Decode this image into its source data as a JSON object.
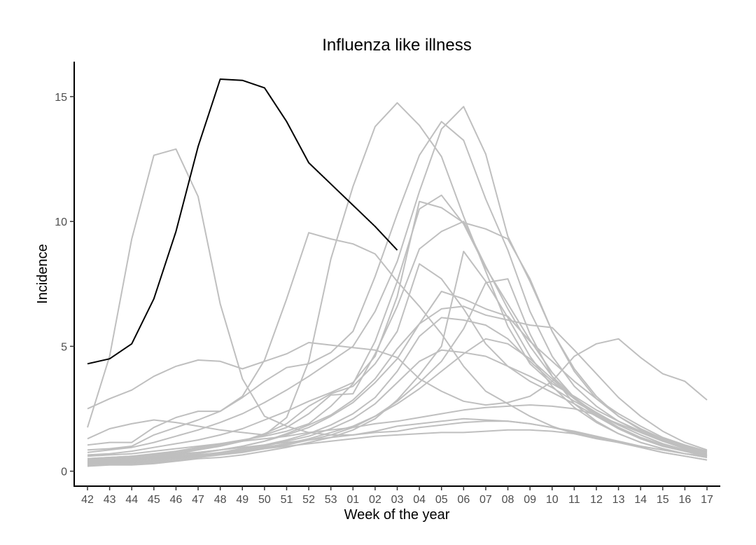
{
  "chart_data": {
    "type": "line",
    "title": "Influenza like illness",
    "xlabel": "Week of the year",
    "ylabel": "Incidence",
    "categories": [
      "42",
      "43",
      "44",
      "45",
      "46",
      "47",
      "48",
      "49",
      "50",
      "51",
      "52",
      "53",
      "01",
      "02",
      "03",
      "04",
      "05",
      "06",
      "07",
      "08",
      "09",
      "10",
      "11",
      "12",
      "13",
      "14",
      "15",
      "16",
      "17"
    ],
    "yticks": [
      0,
      5,
      10,
      15
    ],
    "ylim": [
      -0.6,
      16.4
    ],
    "grid": false,
    "legend": "none",
    "colors": {
      "highlight": "#000000",
      "background": "#bfbfbf"
    },
    "highlight_series": {
      "values": [
        4.3,
        4.5,
        5.1,
        6.9,
        9.6,
        13.0,
        15.7,
        15.65,
        15.35,
        14.0,
        12.35,
        11.5,
        10.65,
        9.8,
        8.85
      ]
    },
    "background_series": [
      {
        "values": [
          1.75,
          4.6,
          9.3,
          12.65,
          12.9,
          11.0,
          6.7,
          3.7,
          2.2,
          1.8,
          1.55,
          1.45,
          1.45,
          1.55,
          1.6,
          1.75,
          1.85,
          1.95,
          2.0,
          2.0,
          1.9,
          1.75,
          1.6,
          1.4,
          1.2,
          1.0,
          0.85,
          0.7,
          0.6
        ]
      },
      {
        "values": [
          2.5,
          2.9,
          3.25,
          3.8,
          4.2,
          4.45,
          4.4,
          4.1,
          4.4,
          4.7,
          5.15,
          5.05,
          4.95,
          4.85,
          4.55,
          3.7,
          3.2,
          2.8,
          2.65,
          2.75,
          3.0,
          3.6,
          4.6,
          5.1,
          5.3,
          4.55,
          3.9,
          3.6,
          2.85
        ]
      },
      {
        "values": [
          1.3,
          1.7,
          1.9,
          2.05,
          1.95,
          1.8,
          1.65,
          1.55,
          1.45,
          2.15,
          4.4,
          8.5,
          11.4,
          13.8,
          14.75,
          13.85,
          12.6,
          10.2,
          8.0,
          5.8,
          4.3,
          3.5,
          3.0,
          2.45,
          2.0,
          1.6,
          1.25,
          1.0,
          0.75
        ]
      },
      {
        "values": [
          1.05,
          1.15,
          1.15,
          1.75,
          2.15,
          2.4,
          2.4,
          3.0,
          4.45,
          6.9,
          9.55,
          9.3,
          9.1,
          8.7,
          7.6,
          6.6,
          5.5,
          4.2,
          3.2,
          2.7,
          2.2,
          1.8,
          1.5,
          1.3,
          1.15,
          1.0,
          0.85,
          0.7,
          0.6
        ]
      },
      {
        "values": [
          0.85,
          0.9,
          1.0,
          1.45,
          1.75,
          2.05,
          2.4,
          2.95,
          3.6,
          4.15,
          4.3,
          4.75,
          5.6,
          7.8,
          10.3,
          12.65,
          14.0,
          13.25,
          10.9,
          8.85,
          6.4,
          4.6,
          3.4,
          2.6,
          2.0,
          1.55,
          1.2,
          0.9,
          0.7
        ]
      },
      {
        "values": [
          0.75,
          0.85,
          0.95,
          1.15,
          1.4,
          1.65,
          1.95,
          2.3,
          2.75,
          3.25,
          3.8,
          4.4,
          5.0,
          6.4,
          8.4,
          11.2,
          13.7,
          14.6,
          12.7,
          9.4,
          7.6,
          5.6,
          4.1,
          3.0,
          2.2,
          1.7,
          1.3,
          1.0,
          0.8
        ]
      },
      {
        "values": [
          0.65,
          0.7,
          0.8,
          0.95,
          1.1,
          1.25,
          1.45,
          1.7,
          2.05,
          2.4,
          2.8,
          3.15,
          3.55,
          4.6,
          7.0,
          10.8,
          10.55,
          9.95,
          9.7,
          9.3,
          7.7,
          5.6,
          4.0,
          2.9,
          2.2,
          1.65,
          1.3,
          1.0,
          0.8
        ]
      },
      {
        "values": [
          0.5,
          0.55,
          0.6,
          0.7,
          0.8,
          0.95,
          1.1,
          1.25,
          1.4,
          1.6,
          1.9,
          2.6,
          3.5,
          5.2,
          7.6,
          10.5,
          11.05,
          9.9,
          8.15,
          6.7,
          5.25,
          3.95,
          2.95,
          2.25,
          1.7,
          1.3,
          1.0,
          0.8,
          0.6
        ]
      },
      {
        "values": [
          0.45,
          0.5,
          0.55,
          0.65,
          0.75,
          0.9,
          1.05,
          1.2,
          1.45,
          1.75,
          2.3,
          3.05,
          3.1,
          4.7,
          6.6,
          8.9,
          9.6,
          10.0,
          8.2,
          6.5,
          5.0,
          3.8,
          2.95,
          2.3,
          1.75,
          1.35,
          1.05,
          0.85,
          0.65
        ]
      },
      {
        "values": [
          0.4,
          0.45,
          0.5,
          0.6,
          0.7,
          0.85,
          1.0,
          1.2,
          1.5,
          1.9,
          2.6,
          3.1,
          3.4,
          4.3,
          5.6,
          8.3,
          7.7,
          6.5,
          5.1,
          4.2,
          3.6,
          3.15,
          2.7,
          2.2,
          1.75,
          1.35,
          1.05,
          0.8,
          0.6
        ]
      },
      {
        "values": [
          0.35,
          0.4,
          0.45,
          0.55,
          0.65,
          0.75,
          0.85,
          1.0,
          1.2,
          1.45,
          1.75,
          2.2,
          2.75,
          3.55,
          4.5,
          5.9,
          6.5,
          6.6,
          6.25,
          6.05,
          5.85,
          5.75,
          4.85,
          3.9,
          2.95,
          2.2,
          1.6,
          1.15,
          0.85
        ]
      },
      {
        "values": [
          0.3,
          0.35,
          0.4,
          0.5,
          0.6,
          0.7,
          0.85,
          1.0,
          1.2,
          1.5,
          1.85,
          2.25,
          2.85,
          3.7,
          4.9,
          5.9,
          7.2,
          6.9,
          6.5,
          6.2,
          5.2,
          4.4,
          3.6,
          2.9,
          2.3,
          1.8,
          1.35,
          1.05,
          0.8
        ]
      },
      {
        "values": [
          0.3,
          0.35,
          0.35,
          0.45,
          0.55,
          0.65,
          0.75,
          0.9,
          1.05,
          1.25,
          1.5,
          1.85,
          2.3,
          2.95,
          4.0,
          5.4,
          6.15,
          6.05,
          5.85,
          5.3,
          4.4,
          3.6,
          2.9,
          2.35,
          1.85,
          1.45,
          1.1,
          0.85,
          0.65
        ]
      },
      {
        "values": [
          0.25,
          0.3,
          0.3,
          0.4,
          0.5,
          0.6,
          0.7,
          0.85,
          1.0,
          1.2,
          1.4,
          1.7,
          2.1,
          2.7,
          3.55,
          4.4,
          4.85,
          4.75,
          4.6,
          4.2,
          3.8,
          3.35,
          2.8,
          2.3,
          1.85,
          1.45,
          1.1,
          0.85,
          0.65
        ]
      },
      {
        "values": [
          0.25,
          0.3,
          0.3,
          0.35,
          0.45,
          0.55,
          0.65,
          0.75,
          0.9,
          1.05,
          1.25,
          1.45,
          1.75,
          2.2,
          2.8,
          3.55,
          4.4,
          5.7,
          7.55,
          7.7,
          5.5,
          3.8,
          2.7,
          2.0,
          1.5,
          1.15,
          0.9,
          0.7,
          0.55
        ]
      },
      {
        "values": [
          0.2,
          0.25,
          0.25,
          0.3,
          0.4,
          0.5,
          0.55,
          0.65,
          0.8,
          0.95,
          1.15,
          1.35,
          1.65,
          2.1,
          2.85,
          3.85,
          5.0,
          8.8,
          7.6,
          6.15,
          4.6,
          3.4,
          2.55,
          1.95,
          1.5,
          1.15,
          0.9,
          0.7,
          0.55
        ]
      },
      {
        "values": [
          0.6,
          0.65,
          0.7,
          0.8,
          0.9,
          1.0,
          1.1,
          1.2,
          1.3,
          1.4,
          1.55,
          1.65,
          1.75,
          1.9,
          2.0,
          2.15,
          2.3,
          2.45,
          2.55,
          2.6,
          2.65,
          2.6,
          2.5,
          2.25,
          1.9,
          1.55,
          1.2,
          0.95,
          0.75
        ]
      },
      {
        "values": [
          0.4,
          0.45,
          0.5,
          0.55,
          0.6,
          0.65,
          0.7,
          0.8,
          0.9,
          1.0,
          1.1,
          1.2,
          1.3,
          1.4,
          1.45,
          1.5,
          1.55,
          1.55,
          1.6,
          1.65,
          1.65,
          1.6,
          1.5,
          1.35,
          1.15,
          0.95,
          0.75,
          0.6,
          0.45
        ]
      },
      {
        "values": [
          0.5,
          0.55,
          0.6,
          0.65,
          0.7,
          0.75,
          0.85,
          0.95,
          1.05,
          1.15,
          1.25,
          1.35,
          1.45,
          1.6,
          1.8,
          1.9,
          2.0,
          2.1,
          2.05,
          2.0,
          1.9,
          1.75,
          1.55,
          1.35,
          1.15,
          0.95,
          0.75,
          0.6,
          0.45
        ]
      },
      {
        "values": [
          0.35,
          0.4,
          0.45,
          0.5,
          0.55,
          0.6,
          0.7,
          0.8,
          0.95,
          1.1,
          1.3,
          1.55,
          1.8,
          2.2,
          2.7,
          3.3,
          4.0,
          4.7,
          5.3,
          5.1,
          4.5,
          3.7,
          2.9,
          2.2,
          1.7,
          1.3,
          1.0,
          0.8,
          0.6
        ]
      }
    ]
  }
}
